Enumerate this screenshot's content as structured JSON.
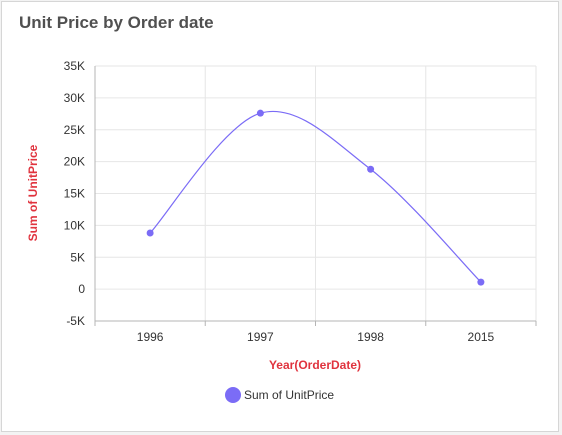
{
  "widget": {
    "title": "Unit Price by Order date"
  },
  "colors": {
    "series": "#7b6cf6",
    "axis_title": "#e0333e",
    "gridline": "#e6e6e6"
  },
  "chart_data": {
    "type": "line",
    "title": "Unit Price by Order date",
    "xlabel": "Year(OrderDate)",
    "ylabel": "Sum of UnitPrice",
    "categories": [
      "1996",
      "1997",
      "1998",
      "2015"
    ],
    "series": [
      {
        "name": "Sum of UnitPrice",
        "values": [
          8800,
          27600,
          18800,
          1100
        ]
      }
    ],
    "ylim": [
      -5000,
      35000
    ],
    "yticks": [
      -5000,
      0,
      5000,
      10000,
      15000,
      20000,
      25000,
      30000,
      35000
    ],
    "ytick_labels": [
      "-5K",
      "0",
      "5K",
      "10K",
      "15K",
      "20K",
      "25K",
      "30K",
      "35K"
    ],
    "smooth": true,
    "grid": true,
    "legend": "bottom"
  }
}
